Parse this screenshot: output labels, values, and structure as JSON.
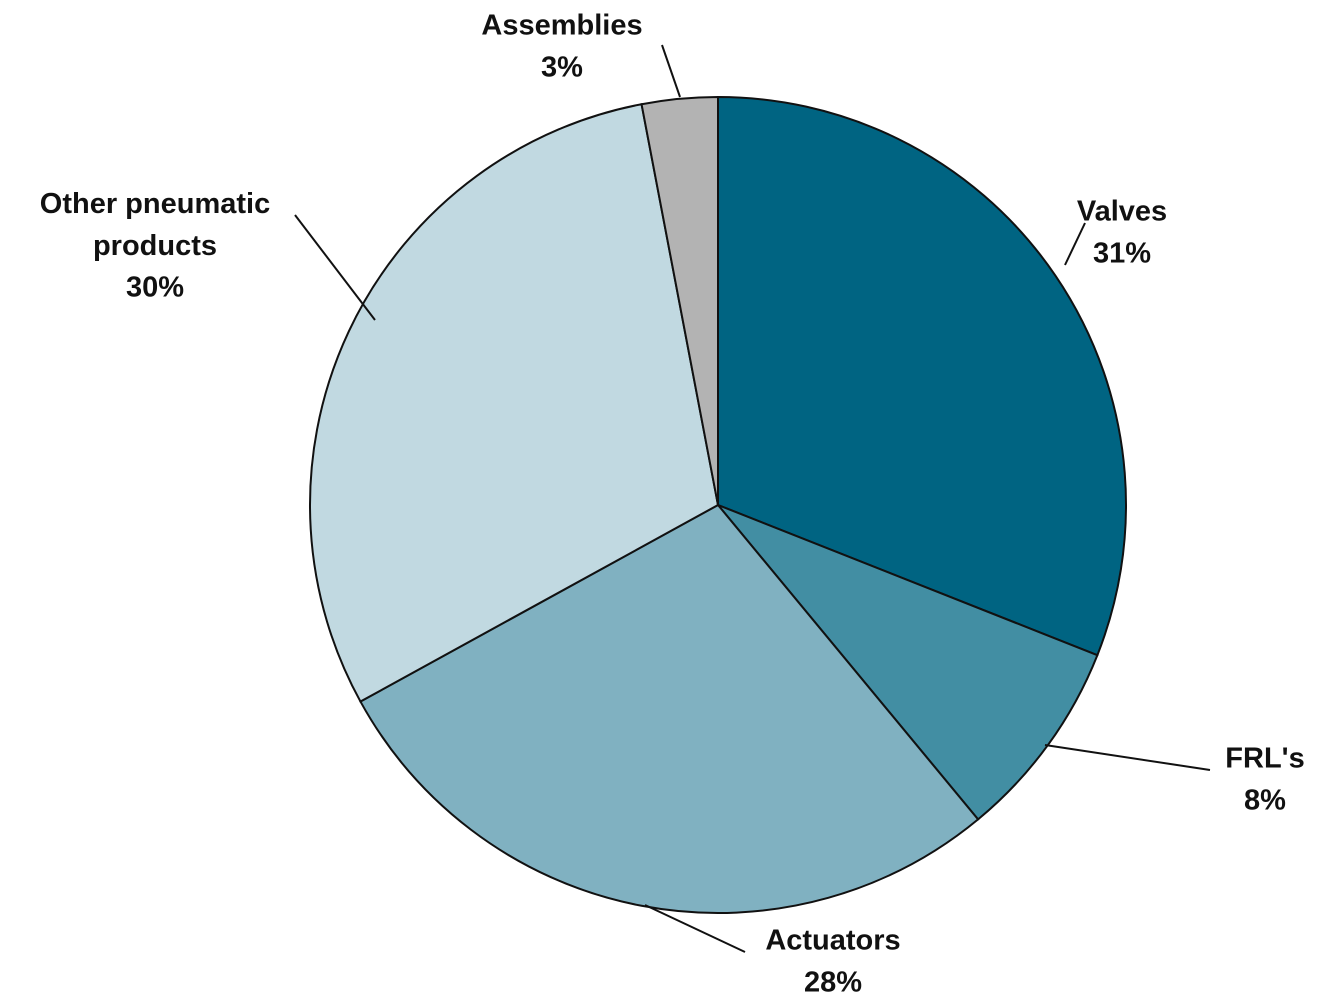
{
  "chart_data": {
    "type": "pie",
    "categories": [
      "Valves",
      "FRL's",
      "Actuators",
      "Other pneumatic products",
      "Assemblies"
    ],
    "values": [
      31,
      8,
      28,
      30,
      3
    ],
    "value_labels": [
      "31%",
      "8%",
      "28%",
      "30%",
      "3%"
    ],
    "colors": [
      "#006482",
      "#428ea3",
      "#80b1c1",
      "#c1d9e1",
      "#b3b3b3"
    ]
  }
}
